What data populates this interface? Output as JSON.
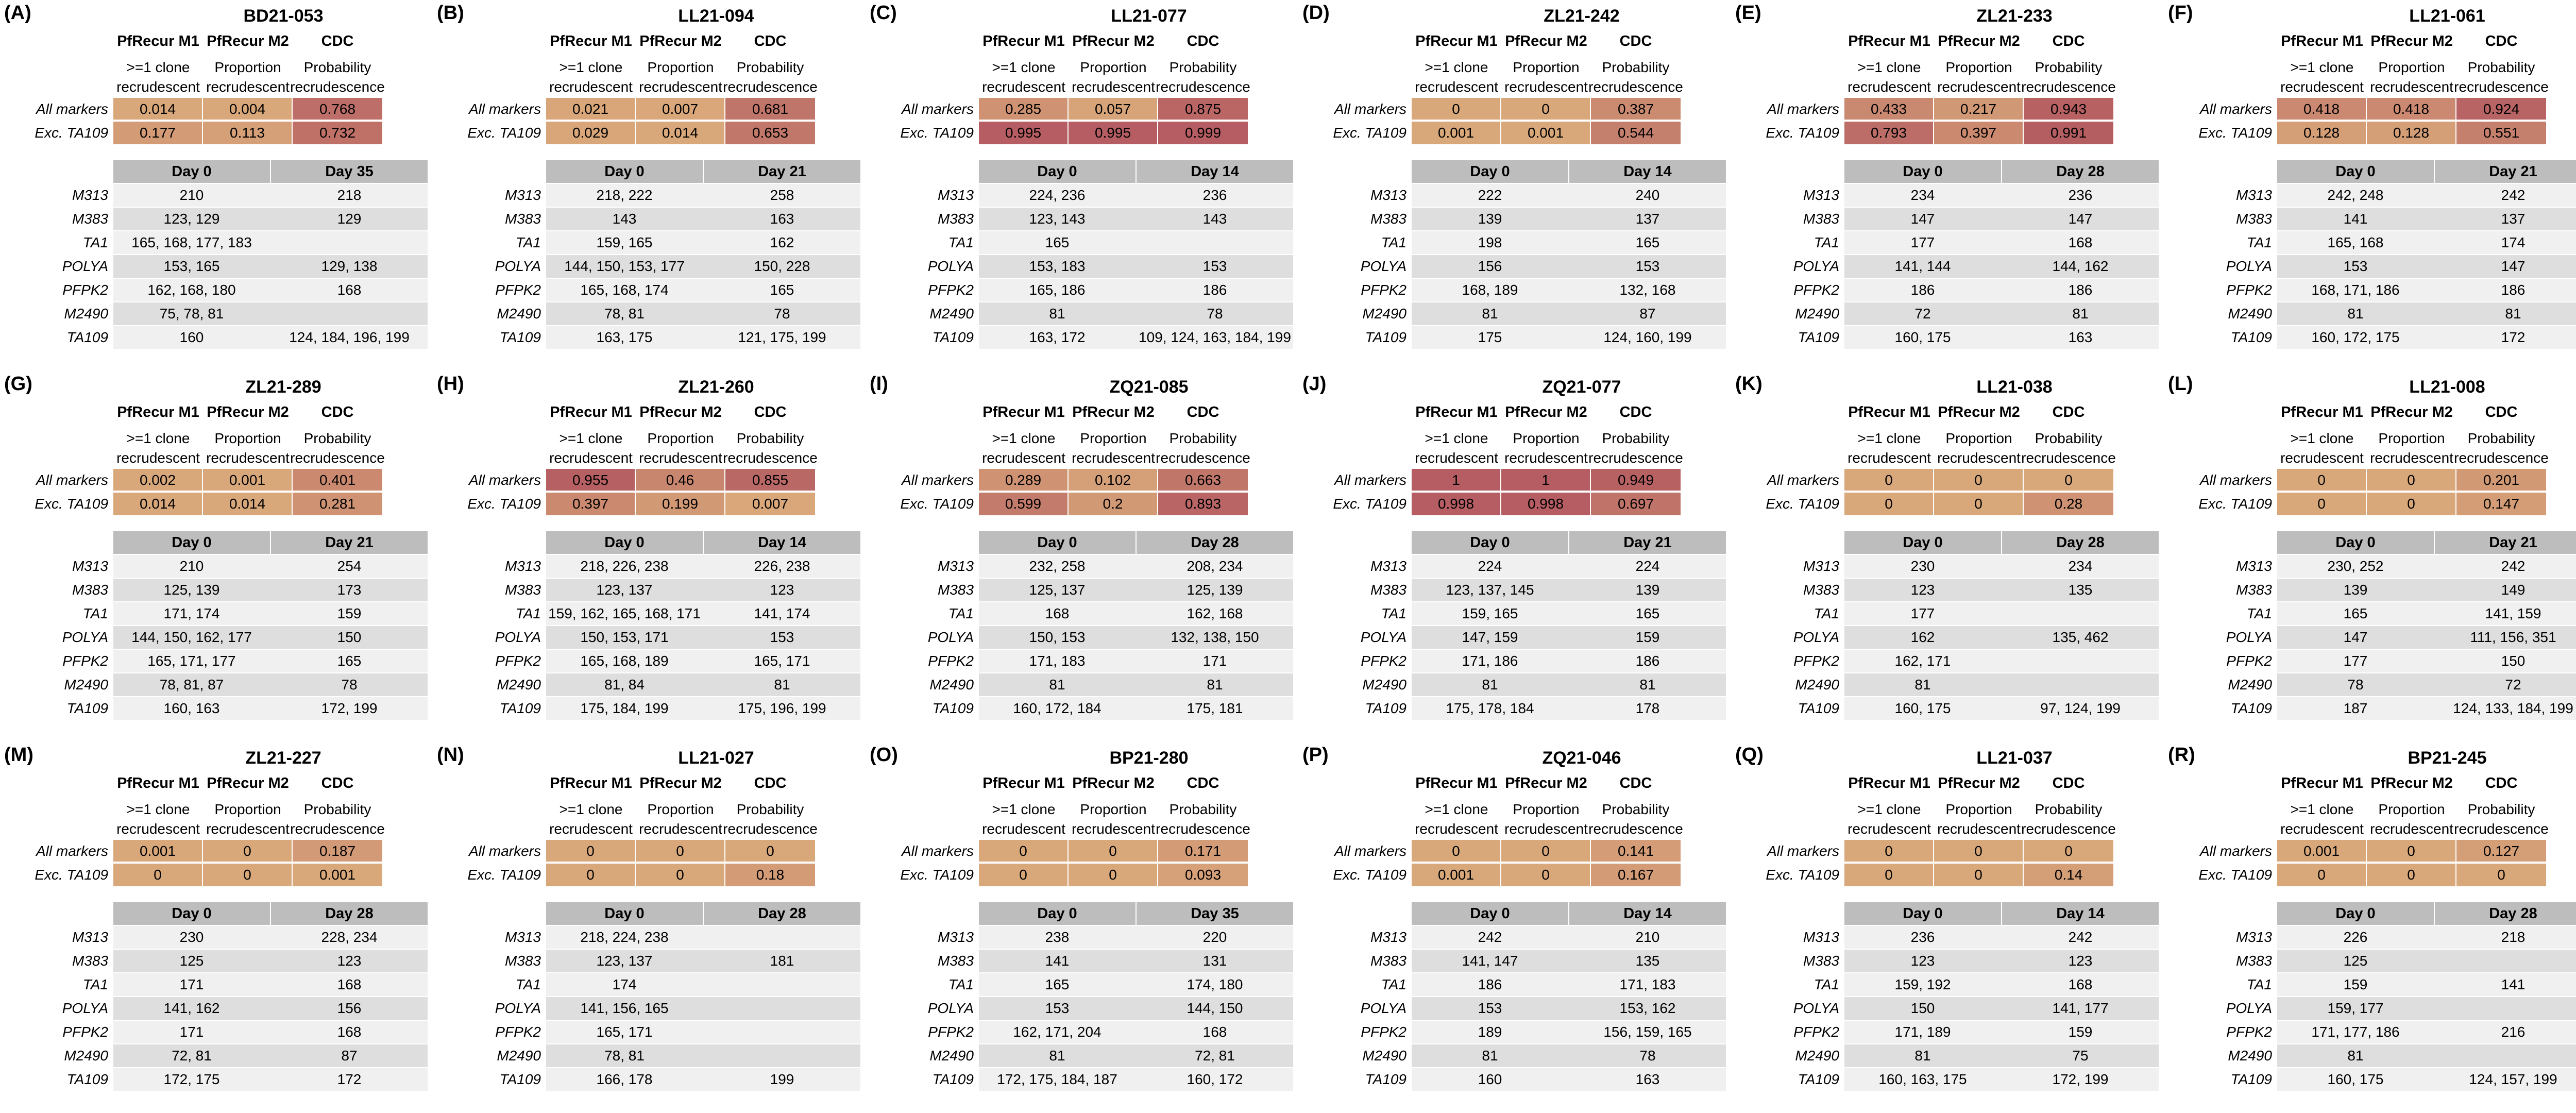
{
  "chart_data": {
    "type": "table",
    "metric_headers": [
      {
        "name": "PfRecur M1",
        "sub1": ">=1 clone",
        "sub2": "recrudescent"
      },
      {
        "name": "PfRecur M2",
        "sub1": "Proportion",
        "sub2": "recrudescent"
      },
      {
        "name": "CDC",
        "sub1": "Probability",
        "sub2": "recrudescence"
      }
    ],
    "row_labels": [
      "All markers",
      "Exc. TA109"
    ],
    "markers": [
      "M313",
      "M383",
      "TA1",
      "POLYA",
      "PFPK2",
      "M2490",
      "TA109"
    ],
    "colors": {
      "low": "#d9a87a",
      "high": "#b55d62"
    },
    "panels": [
      {
        "label": "(A)",
        "id": "BD21-053",
        "scores": [
          [
            "0.014",
            "0.004",
            "0.768"
          ],
          [
            "0.177",
            "0.113",
            "0.732"
          ]
        ],
        "days": [
          "Day 0",
          "Day 35"
        ],
        "genotypes": [
          [
            "210",
            "218"
          ],
          [
            "123, 129",
            "129"
          ],
          [
            "165, 168, 177, 183",
            ""
          ],
          [
            "153, 165",
            "129, 138"
          ],
          [
            "162, 168, 180",
            "168"
          ],
          [
            "75, 78, 81",
            ""
          ],
          [
            "160",
            "124, 184, 196, 199"
          ]
        ]
      },
      {
        "label": "(B)",
        "id": "LL21-094",
        "scores": [
          [
            "0.021",
            "0.007",
            "0.681"
          ],
          [
            "0.029",
            "0.014",
            "0.653"
          ]
        ],
        "days": [
          "Day 0",
          "Day 21"
        ],
        "genotypes": [
          [
            "218, 222",
            "258"
          ],
          [
            "143",
            "163"
          ],
          [
            "159, 165",
            "162"
          ],
          [
            "144, 150, 153, 177",
            "150, 228"
          ],
          [
            "165, 168, 174",
            "165"
          ],
          [
            "78, 81",
            "78"
          ],
          [
            "163, 175",
            "121, 175, 199"
          ]
        ]
      },
      {
        "label": "(C)",
        "id": "LL21-077",
        "scores": [
          [
            "0.285",
            "0.057",
            "0.875"
          ],
          [
            "0.995",
            "0.995",
            "0.999"
          ]
        ],
        "days": [
          "Day 0",
          "Day 14"
        ],
        "genotypes": [
          [
            "224, 236",
            "236"
          ],
          [
            "123, 143",
            "143"
          ],
          [
            "165",
            ""
          ],
          [
            "153, 183",
            "153"
          ],
          [
            "165, 186",
            "186"
          ],
          [
            "81",
            "78"
          ],
          [
            "163, 172",
            "109, 124, 163, 184, 199"
          ]
        ]
      },
      {
        "label": "(D)",
        "id": "ZL21-242",
        "scores": [
          [
            "0",
            "0",
            "0.387"
          ],
          [
            "0.001",
            "0.001",
            "0.544"
          ]
        ],
        "days": [
          "Day 0",
          "Day 14"
        ],
        "genotypes": [
          [
            "222",
            "240"
          ],
          [
            "139",
            "137"
          ],
          [
            "198",
            "165"
          ],
          [
            "156",
            "153"
          ],
          [
            "168, 189",
            "132, 168"
          ],
          [
            "81",
            "87"
          ],
          [
            "175",
            "124, 160, 199"
          ]
        ]
      },
      {
        "label": "(E)",
        "id": "ZL21-233",
        "scores": [
          [
            "0.433",
            "0.217",
            "0.943"
          ],
          [
            "0.793",
            "0.397",
            "0.991"
          ]
        ],
        "days": [
          "Day 0",
          "Day 28"
        ],
        "genotypes": [
          [
            "234",
            "236"
          ],
          [
            "147",
            "147"
          ],
          [
            "177",
            "168"
          ],
          [
            "141, 144",
            "144, 162"
          ],
          [
            "186",
            "186"
          ],
          [
            "72",
            "81"
          ],
          [
            "160, 175",
            "163"
          ]
        ]
      },
      {
        "label": "(F)",
        "id": "LL21-061",
        "scores": [
          [
            "0.418",
            "0.418",
            "0.924"
          ],
          [
            "0.128",
            "0.128",
            "0.551"
          ]
        ],
        "days": [
          "Day 0",
          "Day 21"
        ],
        "genotypes": [
          [
            "242, 248",
            "242"
          ],
          [
            "141",
            "137"
          ],
          [
            "165, 168",
            "174"
          ],
          [
            "153",
            "147"
          ],
          [
            "168, 171, 186",
            "186"
          ],
          [
            "81",
            "81"
          ],
          [
            "160, 172, 175",
            "172"
          ]
        ]
      },
      {
        "label": "(G)",
        "id": "ZL21-289",
        "scores": [
          [
            "0.002",
            "0.001",
            "0.401"
          ],
          [
            "0.014",
            "0.014",
            "0.281"
          ]
        ],
        "days": [
          "Day 0",
          "Day 21"
        ],
        "genotypes": [
          [
            "210",
            "254"
          ],
          [
            "125, 139",
            "173"
          ],
          [
            "171, 174",
            "159"
          ],
          [
            "144, 150, 162, 177",
            "150"
          ],
          [
            "165, 171, 177",
            "165"
          ],
          [
            "78, 81, 87",
            "78"
          ],
          [
            "160, 163",
            "172, 199"
          ]
        ]
      },
      {
        "label": "(H)",
        "id": "ZL21-260",
        "scores": [
          [
            "0.955",
            "0.46",
            "0.855"
          ],
          [
            "0.397",
            "0.199",
            "0.007"
          ]
        ],
        "days": [
          "Day 0",
          "Day 14"
        ],
        "genotypes": [
          [
            "218, 226, 238",
            "226, 238"
          ],
          [
            "123, 137",
            "123"
          ],
          [
            "159, 162, 165, 168, 171",
            "141, 174"
          ],
          [
            "150, 153, 171",
            "153"
          ],
          [
            "165, 168, 189",
            "165, 171"
          ],
          [
            "81, 84",
            "81"
          ],
          [
            "175, 184, 199",
            "175, 196, 199"
          ]
        ]
      },
      {
        "label": "(I)",
        "id": "ZQ21-085",
        "scores": [
          [
            "0.289",
            "0.102",
            "0.663"
          ],
          [
            "0.599",
            "0.2",
            "0.893"
          ]
        ],
        "days": [
          "Day 0",
          "Day 28"
        ],
        "genotypes": [
          [
            "232, 258",
            "208, 234"
          ],
          [
            "125, 137",
            "125, 139"
          ],
          [
            "168",
            "162, 168"
          ],
          [
            "150, 153",
            "132, 138, 150"
          ],
          [
            "171, 183",
            "171"
          ],
          [
            "81",
            "81"
          ],
          [
            "160, 172, 184",
            "175, 181"
          ]
        ]
      },
      {
        "label": "(J)",
        "id": "ZQ21-077",
        "scores": [
          [
            "1",
            "1",
            "0.949"
          ],
          [
            "0.998",
            "0.998",
            "0.697"
          ]
        ],
        "days": [
          "Day 0",
          "Day 21"
        ],
        "genotypes": [
          [
            "224",
            "224"
          ],
          [
            "123, 137, 145",
            "139"
          ],
          [
            "159, 165",
            "165"
          ],
          [
            "147, 159",
            "159"
          ],
          [
            "171, 186",
            "186"
          ],
          [
            "81",
            "81"
          ],
          [
            "175, 178, 184",
            "178"
          ]
        ]
      },
      {
        "label": "(K)",
        "id": "LL21-038",
        "scores": [
          [
            "0",
            "0",
            "0"
          ],
          [
            "0",
            "0",
            "0.28"
          ]
        ],
        "days": [
          "Day 0",
          "Day 28"
        ],
        "genotypes": [
          [
            "230",
            "234"
          ],
          [
            "123",
            "135"
          ],
          [
            "177",
            ""
          ],
          [
            "162",
            "135, 462"
          ],
          [
            "162, 171",
            ""
          ],
          [
            "81",
            ""
          ],
          [
            "160, 175",
            "97, 124, 199"
          ]
        ]
      },
      {
        "label": "(L)",
        "id": "LL21-008",
        "scores": [
          [
            "0",
            "0",
            "0.201"
          ],
          [
            "0",
            "0",
            "0.147"
          ]
        ],
        "days": [
          "Day 0",
          "Day 21"
        ],
        "genotypes": [
          [
            "230, 252",
            "242"
          ],
          [
            "139",
            "149"
          ],
          [
            "165",
            "141, 159"
          ],
          [
            "147",
            "111, 156, 351"
          ],
          [
            "177",
            "150"
          ],
          [
            "78",
            "72"
          ],
          [
            "187",
            "124, 133, 184, 199"
          ]
        ]
      },
      {
        "label": "(M)",
        "id": "ZL21-227",
        "scores": [
          [
            "0.001",
            "0",
            "0.187"
          ],
          [
            "0",
            "0",
            "0.001"
          ]
        ],
        "days": [
          "Day 0",
          "Day 28"
        ],
        "genotypes": [
          [
            "230",
            "228, 234"
          ],
          [
            "125",
            "123"
          ],
          [
            "171",
            "168"
          ],
          [
            "141, 162",
            "156"
          ],
          [
            "171",
            "168"
          ],
          [
            "72, 81",
            "87"
          ],
          [
            "172, 175",
            "172"
          ]
        ]
      },
      {
        "label": "(N)",
        "id": "LL21-027",
        "scores": [
          [
            "0",
            "0",
            "0"
          ],
          [
            "0",
            "0",
            "0.18"
          ]
        ],
        "days": [
          "Day 0",
          "Day 28"
        ],
        "genotypes": [
          [
            "218, 224, 238",
            ""
          ],
          [
            "123, 137",
            "181"
          ],
          [
            "174",
            ""
          ],
          [
            "141, 156, 165",
            ""
          ],
          [
            "165, 171",
            ""
          ],
          [
            "78, 81",
            ""
          ],
          [
            "166, 178",
            "199"
          ]
        ]
      },
      {
        "label": "(O)",
        "id": "BP21-280",
        "scores": [
          [
            "0",
            "0",
            "0.171"
          ],
          [
            "0",
            "0",
            "0.093"
          ]
        ],
        "days": [
          "Day 0",
          "Day 35"
        ],
        "genotypes": [
          [
            "238",
            "220"
          ],
          [
            "141",
            "131"
          ],
          [
            "165",
            "174, 180"
          ],
          [
            "153",
            "144, 150"
          ],
          [
            "162, 171, 204",
            "168"
          ],
          [
            "81",
            "72, 81"
          ],
          [
            "172, 175, 184, 187",
            "160, 172"
          ]
        ]
      },
      {
        "label": "(P)",
        "id": "ZQ21-046",
        "scores": [
          [
            "0",
            "0",
            "0.141"
          ],
          [
            "0.001",
            "0",
            "0.167"
          ]
        ],
        "days": [
          "Day 0",
          "Day 14"
        ],
        "genotypes": [
          [
            "242",
            "210"
          ],
          [
            "141, 147",
            "135"
          ],
          [
            "186",
            "171, 183"
          ],
          [
            "153",
            "153, 162"
          ],
          [
            "189",
            "156, 159, 165"
          ],
          [
            "81",
            "78"
          ],
          [
            "160",
            "163"
          ]
        ]
      },
      {
        "label": "(Q)",
        "id": "LL21-037",
        "scores": [
          [
            "0",
            "0",
            "0"
          ],
          [
            "0",
            "0",
            "0.14"
          ]
        ],
        "days": [
          "Day 0",
          "Day 14"
        ],
        "genotypes": [
          [
            "236",
            "242"
          ],
          [
            "123",
            "123"
          ],
          [
            "159, 192",
            "168"
          ],
          [
            "150",
            "141, 177"
          ],
          [
            "171, 189",
            "159"
          ],
          [
            "81",
            "75"
          ],
          [
            "160, 163, 175",
            "172, 199"
          ]
        ]
      },
      {
        "label": "(R)",
        "id": "BP21-245",
        "scores": [
          [
            "0.001",
            "0",
            "0.127"
          ],
          [
            "0",
            "0",
            "0"
          ]
        ],
        "days": [
          "Day 0",
          "Day 28"
        ],
        "genotypes": [
          [
            "226",
            "218"
          ],
          [
            "125",
            ""
          ],
          [
            "159",
            "141"
          ],
          [
            "159, 177",
            ""
          ],
          [
            "171, 177, 186",
            "216"
          ],
          [
            "81",
            ""
          ],
          [
            "160, 175",
            "124, 157, 199"
          ]
        ]
      }
    ]
  }
}
